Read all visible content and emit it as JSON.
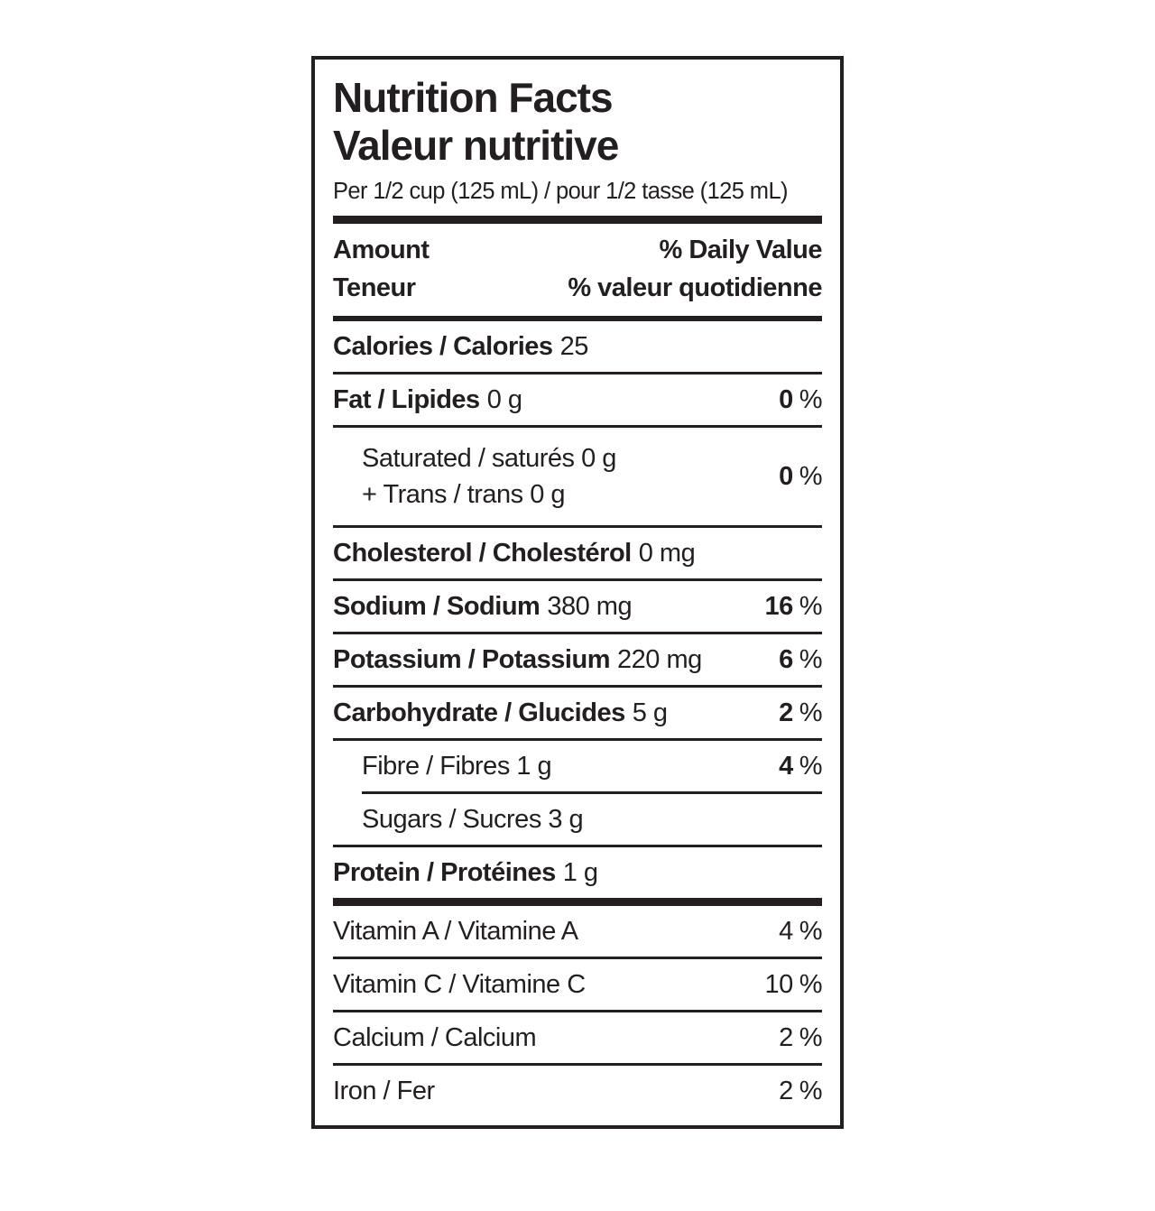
{
  "label": {
    "title_en": "Nutrition Facts",
    "title_fr": "Valeur nutritive",
    "serving_line": "Per 1/2 cup (125 mL) / pour 1/2 tasse (125 mL)",
    "percent_sign": "%",
    "header": {
      "amount_en": "Amount",
      "amount_fr": "Teneur",
      "daily_value_en": "% Daily Value",
      "daily_value_fr": "% valeur quotidienne"
    },
    "colors": {
      "ink": "#231f20",
      "paper": "#ffffff"
    },
    "rows": {
      "calories": {
        "name": "Calories / Calories",
        "amount": "25"
      },
      "fat": {
        "name": "Fat / Lipides",
        "amount": "0 g",
        "dv": "0"
      },
      "saturated": {
        "text": "Saturated / saturés 0 g",
        "text2": "+ Trans / trans 0 g",
        "dv": "0"
      },
      "cholesterol": {
        "name": "Cholesterol / Cholestérol",
        "amount": "0 mg"
      },
      "sodium": {
        "name": "Sodium / Sodium",
        "amount": "380 mg",
        "dv": "16"
      },
      "potassium": {
        "name": "Potassium / Potassium",
        "amount": "220 mg",
        "dv": "6"
      },
      "carbohydrate": {
        "name": "Carbohydrate / Glucides",
        "amount": "5 g",
        "dv": "2"
      },
      "fibre": {
        "text": "Fibre / Fibres 1 g",
        "dv": "4"
      },
      "sugars": {
        "text": "Sugars / Sucres 3 g"
      },
      "protein": {
        "name": "Protein / Protéines",
        "amount": "1 g"
      },
      "vitamin_a": {
        "text": "Vitamin A / Vitamine A",
        "dv": "4"
      },
      "vitamin_c": {
        "text": "Vitamin C / Vitamine C",
        "dv": "10"
      },
      "calcium": {
        "text": "Calcium / Calcium",
        "dv": "2"
      },
      "iron": {
        "text": "Iron / Fer",
        "dv": "2"
      }
    }
  }
}
